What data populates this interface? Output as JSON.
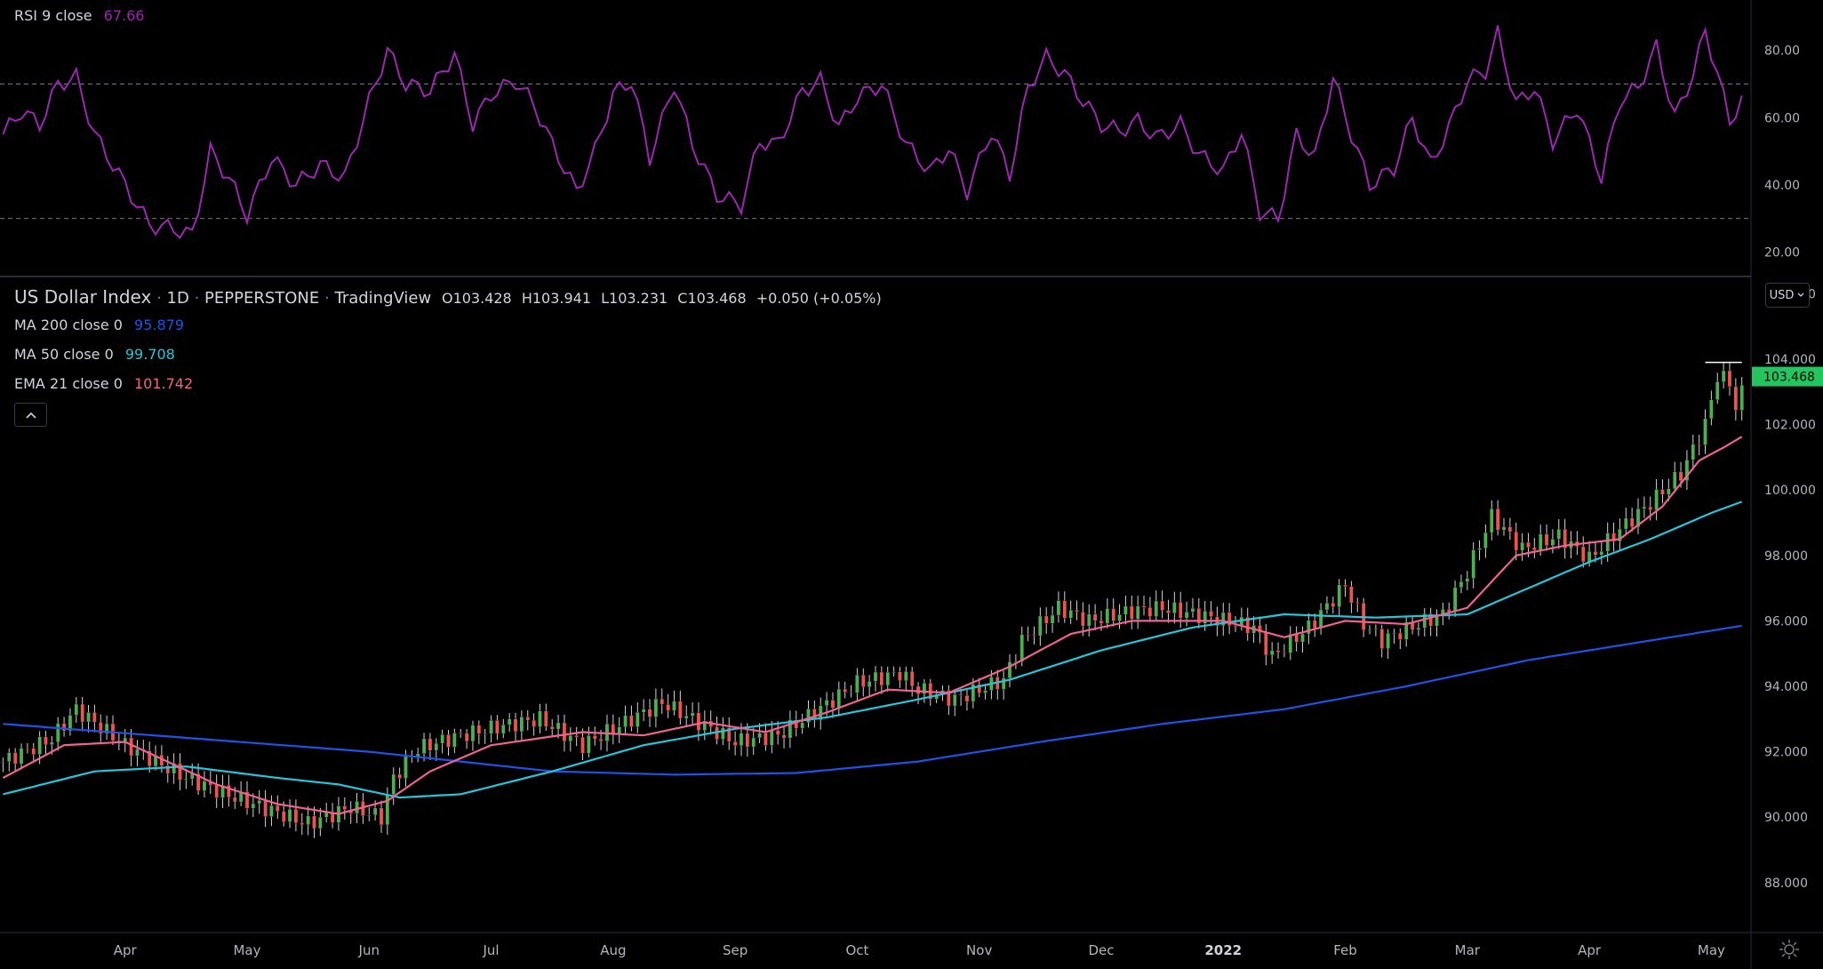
{
  "rsi": {
    "label": "RSI 9 close",
    "value": "67.66",
    "color": "#9c27b0",
    "upper": 70,
    "lower": 30,
    "ticks": [
      "80.00",
      "60.00",
      "40.00",
      "20.00"
    ],
    "tick_values": [
      80,
      60,
      40,
      20
    ],
    "ylim": [
      13,
      95
    ]
  },
  "header": {
    "symbol": "US Dollar Index",
    "interval": "1D",
    "exchange": "PEPPERSTONE",
    "source": "TradingView",
    "open": "O103.428",
    "high": "H103.941",
    "low": "L103.231",
    "close": "C103.468",
    "change": "+0.050 (+0.05%)"
  },
  "indicators": [
    {
      "label": "MA 200 close 0",
      "value": "95.879",
      "color": "#1e53e5"
    },
    {
      "label": "MA 50 close 0",
      "value": "99.708",
      "color": "#26c6da"
    },
    {
      "label": "EMA 21 close 0",
      "value": "101.742",
      "color": "#f06292"
    }
  ],
  "currency_button": "USD",
  "collapse_icon": "chevron-up-icon",
  "settings_icon": "gear-icon",
  "price_tag": {
    "value": "103.468",
    "color": "#22c55e"
  },
  "colors": {
    "up": "#4caf50",
    "down": "#ef5350",
    "grid_line": "#787b86"
  },
  "chart_data": {
    "type": "candlestick",
    "title": "US Dollar Index",
    "ylim": [
      86.5,
      106.5
    ],
    "yticks": [
      "106.000",
      "104.000",
      "102.000",
      "100.000",
      "98.000",
      "96.000",
      "94.000",
      "92.000",
      "90.000",
      "88.000"
    ],
    "ytick_values": [
      106,
      104,
      102,
      100,
      98,
      96,
      94,
      92,
      90,
      88
    ],
    "xticks": [
      "Apr",
      "May",
      "Jun",
      "Jul",
      "Aug",
      "Sep",
      "Oct",
      "Nov",
      "Dec",
      "2022",
      "Feb",
      "Mar",
      "Apr",
      "May"
    ],
    "xtick_positions": [
      20,
      40,
      60,
      80,
      100,
      120,
      140,
      160,
      180,
      200,
      220,
      240,
      260,
      280
    ],
    "n_bars": 286,
    "price_keypoints": [
      [
        0,
        91.7
      ],
      [
        8,
        92.4
      ],
      [
        12,
        93.3
      ],
      [
        20,
        92.2
      ],
      [
        30,
        91.2
      ],
      [
        38,
        90.6
      ],
      [
        44,
        90.2
      ],
      [
        50,
        89.8
      ],
      [
        57,
        90.3
      ],
      [
        62,
        90.0
      ],
      [
        64,
        91.2
      ],
      [
        68,
        92.1
      ],
      [
        75,
        92.5
      ],
      [
        82,
        92.8
      ],
      [
        88,
        93.0
      ],
      [
        95,
        92.2
      ],
      [
        102,
        92.9
      ],
      [
        108,
        93.5
      ],
      [
        115,
        92.8
      ],
      [
        120,
        92.3
      ],
      [
        127,
        92.5
      ],
      [
        133,
        93.2
      ],
      [
        140,
        94.1
      ],
      [
        147,
        94.4
      ],
      [
        150,
        93.9
      ],
      [
        156,
        93.6
      ],
      [
        160,
        93.9
      ],
      [
        164,
        94.2
      ],
      [
        167,
        95.4
      ],
      [
        173,
        96.4
      ],
      [
        178,
        96.0
      ],
      [
        185,
        96.3
      ],
      [
        190,
        96.4
      ],
      [
        198,
        96.1
      ],
      [
        205,
        95.8
      ],
      [
        208,
        94.9
      ],
      [
        214,
        95.8
      ],
      [
        220,
        97.1
      ],
      [
        223,
        95.9
      ],
      [
        226,
        95.4
      ],
      [
        232,
        95.9
      ],
      [
        236,
        96.2
      ],
      [
        240,
        97.5
      ],
      [
        244,
        99.2
      ],
      [
        249,
        98.2
      ],
      [
        255,
        98.6
      ],
      [
        260,
        97.9
      ],
      [
        265,
        98.8
      ],
      [
        270,
        99.6
      ],
      [
        275,
        100.5
      ],
      [
        279,
        102.0
      ],
      [
        281,
        103.5
      ],
      [
        283,
        103.3
      ],
      [
        284,
        102.5
      ],
      [
        286,
        103.47
      ]
    ],
    "ma200_keypoints": [
      [
        0,
        92.85
      ],
      [
        60,
        92.0
      ],
      [
        90,
        91.4
      ],
      [
        110,
        91.3
      ],
      [
        130,
        91.35
      ],
      [
        150,
        91.7
      ],
      [
        170,
        92.3
      ],
      [
        190,
        92.85
      ],
      [
        210,
        93.3
      ],
      [
        230,
        94.0
      ],
      [
        250,
        94.8
      ],
      [
        270,
        95.4
      ],
      [
        286,
        95.88
      ]
    ],
    "ma50_keypoints": [
      [
        0,
        90.7
      ],
      [
        15,
        91.4
      ],
      [
        30,
        91.55
      ],
      [
        45,
        91.2
      ],
      [
        55,
        91.0
      ],
      [
        65,
        90.6
      ],
      [
        75,
        90.7
      ],
      [
        90,
        91.4
      ],
      [
        105,
        92.2
      ],
      [
        120,
        92.7
      ],
      [
        135,
        93.05
      ],
      [
        150,
        93.6
      ],
      [
        165,
        94.2
      ],
      [
        180,
        95.1
      ],
      [
        195,
        95.8
      ],
      [
        210,
        96.2
      ],
      [
        225,
        96.1
      ],
      [
        240,
        96.2
      ],
      [
        250,
        97.0
      ],
      [
        260,
        97.8
      ],
      [
        270,
        98.5
      ],
      [
        280,
        99.3
      ],
      [
        286,
        99.71
      ]
    ],
    "ema21_keypoints": [
      [
        0,
        91.2
      ],
      [
        10,
        92.2
      ],
      [
        20,
        92.3
      ],
      [
        35,
        91.0
      ],
      [
        45,
        90.4
      ],
      [
        55,
        90.1
      ],
      [
        63,
        90.5
      ],
      [
        70,
        91.4
      ],
      [
        80,
        92.2
      ],
      [
        95,
        92.6
      ],
      [
        105,
        92.5
      ],
      [
        115,
        92.9
      ],
      [
        125,
        92.6
      ],
      [
        135,
        93.2
      ],
      [
        145,
        93.9
      ],
      [
        155,
        93.8
      ],
      [
        165,
        94.6
      ],
      [
        175,
        95.6
      ],
      [
        185,
        96.0
      ],
      [
        200,
        96.0
      ],
      [
        210,
        95.5
      ],
      [
        220,
        96.0
      ],
      [
        230,
        95.9
      ],
      [
        240,
        96.4
      ],
      [
        248,
        98.0
      ],
      [
        256,
        98.3
      ],
      [
        265,
        98.5
      ],
      [
        272,
        99.5
      ],
      [
        278,
        100.9
      ],
      [
        282,
        101.3
      ],
      [
        286,
        101.74
      ]
    ],
    "rsi_keypoints": [
      [
        0,
        55
      ],
      [
        3,
        62
      ],
      [
        6,
        58
      ],
      [
        9,
        70
      ],
      [
        12,
        72
      ],
      [
        15,
        55
      ],
      [
        20,
        40
      ],
      [
        24,
        28
      ],
      [
        28,
        27
      ],
      [
        31,
        25
      ],
      [
        34,
        50
      ],
      [
        37,
        42
      ],
      [
        40,
        31
      ],
      [
        44,
        48
      ],
      [
        48,
        40
      ],
      [
        52,
        46
      ],
      [
        56,
        42
      ],
      [
        60,
        65
      ],
      [
        63,
        80
      ],
      [
        66,
        70
      ],
      [
        70,
        68
      ],
      [
        74,
        79
      ],
      [
        77,
        58
      ],
      [
        80,
        67
      ],
      [
        84,
        71
      ],
      [
        87,
        64
      ],
      [
        90,
        52
      ],
      [
        94,
        38
      ],
      [
        97,
        50
      ],
      [
        100,
        67
      ],
      [
        103,
        71
      ],
      [
        106,
        48
      ],
      [
        110,
        70
      ],
      [
        113,
        52
      ],
      [
        117,
        37
      ],
      [
        121,
        34
      ],
      [
        124,
        53
      ],
      [
        127,
        52
      ],
      [
        131,
        68
      ],
      [
        134,
        71
      ],
      [
        137,
        57
      ],
      [
        140,
        66
      ],
      [
        144,
        70
      ],
      [
        148,
        52
      ],
      [
        152,
        44
      ],
      [
        155,
        51
      ],
      [
        158,
        38
      ],
      [
        162,
        56
      ],
      [
        165,
        43
      ],
      [
        168,
        69
      ],
      [
        171,
        78
      ],
      [
        174,
        73
      ],
      [
        177,
        65
      ],
      [
        180,
        58
      ],
      [
        183,
        56
      ],
      [
        186,
        59
      ],
      [
        189,
        54
      ],
      [
        193,
        58
      ],
      [
        196,
        49
      ],
      [
        200,
        44
      ],
      [
        203,
        56
      ],
      [
        206,
        32
      ],
      [
        209,
        30
      ],
      [
        212,
        55
      ],
      [
        215,
        48
      ],
      [
        218,
        72
      ],
      [
        221,
        55
      ],
      [
        224,
        40
      ],
      [
        228,
        45
      ],
      [
        231,
        60
      ],
      [
        234,
        46
      ],
      [
        237,
        57
      ],
      [
        240,
        71
      ],
      [
        243,
        74
      ],
      [
        245,
        85
      ],
      [
        248,
        64
      ],
      [
        251,
        69
      ],
      [
        254,
        53
      ],
      [
        258,
        63
      ],
      [
        262,
        42
      ],
      [
        265,
        65
      ],
      [
        268,
        69
      ],
      [
        271,
        81
      ],
      [
        274,
        60
      ],
      [
        277,
        73
      ],
      [
        279,
        86
      ],
      [
        281,
        73
      ],
      [
        283,
        59
      ],
      [
        286,
        68
      ]
    ]
  }
}
